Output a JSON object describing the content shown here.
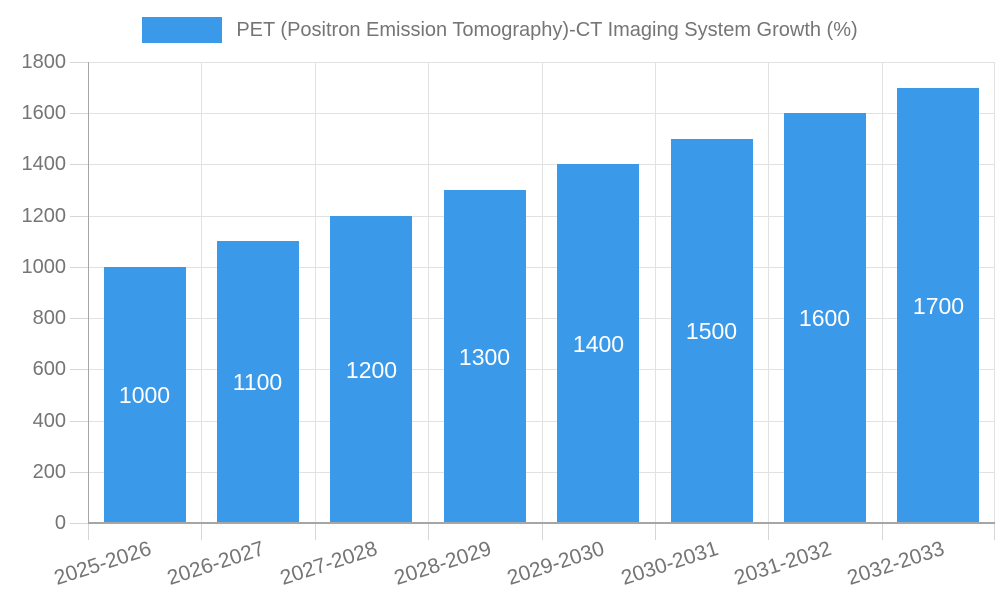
{
  "chart_data": {
    "type": "bar",
    "title": "PET (Positron Emission Tomography)-CT Imaging System Growth (%)",
    "legend": {
      "position": "top",
      "entries": [
        "PET (Positron Emission Tomography)-CT Imaging System Growth (%)"
      ]
    },
    "categories": [
      "2025-2026",
      "2026-2027",
      "2027-2028",
      "2028-2029",
      "2029-2030",
      "2030-2031",
      "2031-2032",
      "2032-2033"
    ],
    "values": [
      1000,
      1100,
      1200,
      1300,
      1400,
      1500,
      1600,
      1700
    ],
    "bar_labels": [
      "1000",
      "1100",
      "1200",
      "1300",
      "1400",
      "1500",
      "1600",
      "1700"
    ],
    "xlabel": "",
    "ylabel": "",
    "ylim": [
      0,
      1800
    ],
    "yticks": [
      0,
      200,
      400,
      600,
      800,
      1000,
      1200,
      1400,
      1600,
      1800
    ],
    "grid": true,
    "x_label_rotation_deg": -18,
    "colors": {
      "bar": "#3b99ea",
      "bar_label": "#ffffff",
      "grid": "#e2e2e2",
      "axis": "#a6a6a6",
      "tick": "#d6d6d6",
      "text": "#757575",
      "background": "#ffffff"
    }
  }
}
